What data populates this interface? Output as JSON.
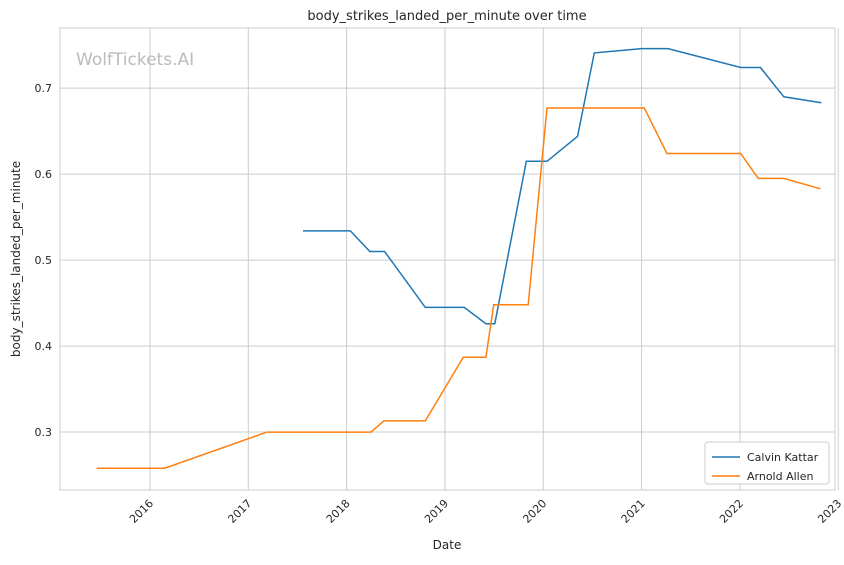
{
  "chart_data": {
    "type": "line",
    "title": "body_strikes_landed_per_minute over time",
    "xlabel": "Date",
    "ylabel": "body_strikes_landed_per_minute",
    "watermark": "WolfTickets.AI",
    "xlim": [
      "2015-02-01",
      "2022-12-20"
    ],
    "ylim": [
      0.2326,
      0.77
    ],
    "x_ticks": [
      "2016",
      "2017",
      "2018",
      "2019",
      "2020",
      "2021",
      "2022",
      "2023"
    ],
    "y_ticks": [
      "0.3",
      "0.4",
      "0.5",
      "0.6",
      "0.7"
    ],
    "grid": true,
    "legend_placement": "lower-right",
    "series": [
      {
        "name": "Calvin Kattar",
        "color": "#1f77b4",
        "x": [
          "2017-07-23",
          "2018-01-15",
          "2018-03-28",
          "2018-05-22",
          "2018-10-20",
          "2019-03-14",
          "2019-06-02",
          "2019-07-05",
          "2019-10-30",
          "2020-01-15",
          "2020-05-08",
          "2020-07-09",
          "2021-01-01",
          "2021-04-09",
          "2022-01-04",
          "2022-03-18",
          "2022-06-13",
          "2022-10-30"
        ],
        "y": [
          0.534,
          0.534,
          0.51,
          0.51,
          0.445,
          0.445,
          0.426,
          0.426,
          0.615,
          0.615,
          0.644,
          0.741,
          0.746,
          0.746,
          0.724,
          0.724,
          0.69,
          0.683
        ]
      },
      {
        "name": "Arnold Allen",
        "color": "#ff7f0e",
        "x": [
          "2015-06-17",
          "2016-02-25",
          "2017-03-11",
          "2018-04-01",
          "2018-05-19",
          "2018-10-20",
          "2019-03-10",
          "2019-06-02",
          "2019-07-01",
          "2019-11-06",
          "2020-01-15",
          "2021-01-11",
          "2021-04-05",
          "2022-01-04",
          "2022-03-10",
          "2022-06-13",
          "2022-10-27"
        ],
        "y": [
          0.258,
          0.258,
          0.3,
          0.3,
          0.313,
          0.313,
          0.387,
          0.387,
          0.448,
          0.448,
          0.677,
          0.677,
          0.624,
          0.624,
          0.595,
          0.595,
          0.583
        ]
      }
    ]
  }
}
